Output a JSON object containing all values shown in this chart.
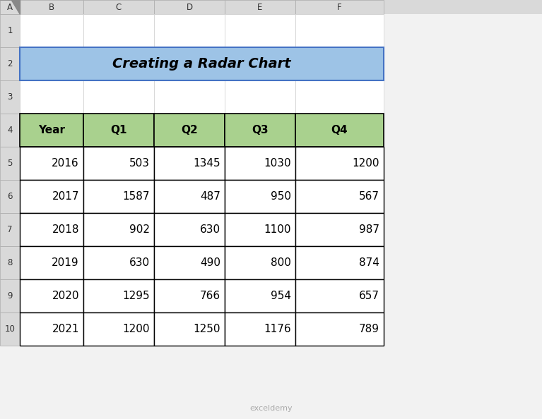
{
  "title": "Creating a Radar Chart",
  "title_bg": "#9DC3E6",
  "title_border": "#4472C4",
  "header_bg": "#A9D18E",
  "header_border": "#375623",
  "cell_bg": "#FFFFFF",
  "cell_border": "#000000",
  "grid_bg": "#D9D9D9",
  "spreadsheet_bg": "#F2F2F2",
  "col_header_bg": "#FFFFFF",
  "row_header_bg": "#FFFFFF",
  "headers": [
    "Year",
    "Q1",
    "Q2",
    "Q3",
    "Q4"
  ],
  "rows": [
    [
      2016,
      503,
      1345,
      1030,
      1200
    ],
    [
      2017,
      1587,
      487,
      950,
      567
    ],
    [
      2018,
      902,
      630,
      1100,
      987
    ],
    [
      2019,
      630,
      490,
      800,
      874
    ],
    [
      2020,
      1295,
      766,
      954,
      657
    ],
    [
      2021,
      1200,
      1250,
      1176,
      789
    ]
  ],
  "col_letters": [
    "A",
    "B",
    "C",
    "D",
    "E",
    "F"
  ],
  "row_numbers": [
    "1",
    "2",
    "3",
    "4",
    "5",
    "6",
    "7",
    "8",
    "9",
    "10"
  ],
  "watermark": "exceldemy",
  "fig_width": 7.67,
  "fig_height": 5.94,
  "dpi": 100
}
